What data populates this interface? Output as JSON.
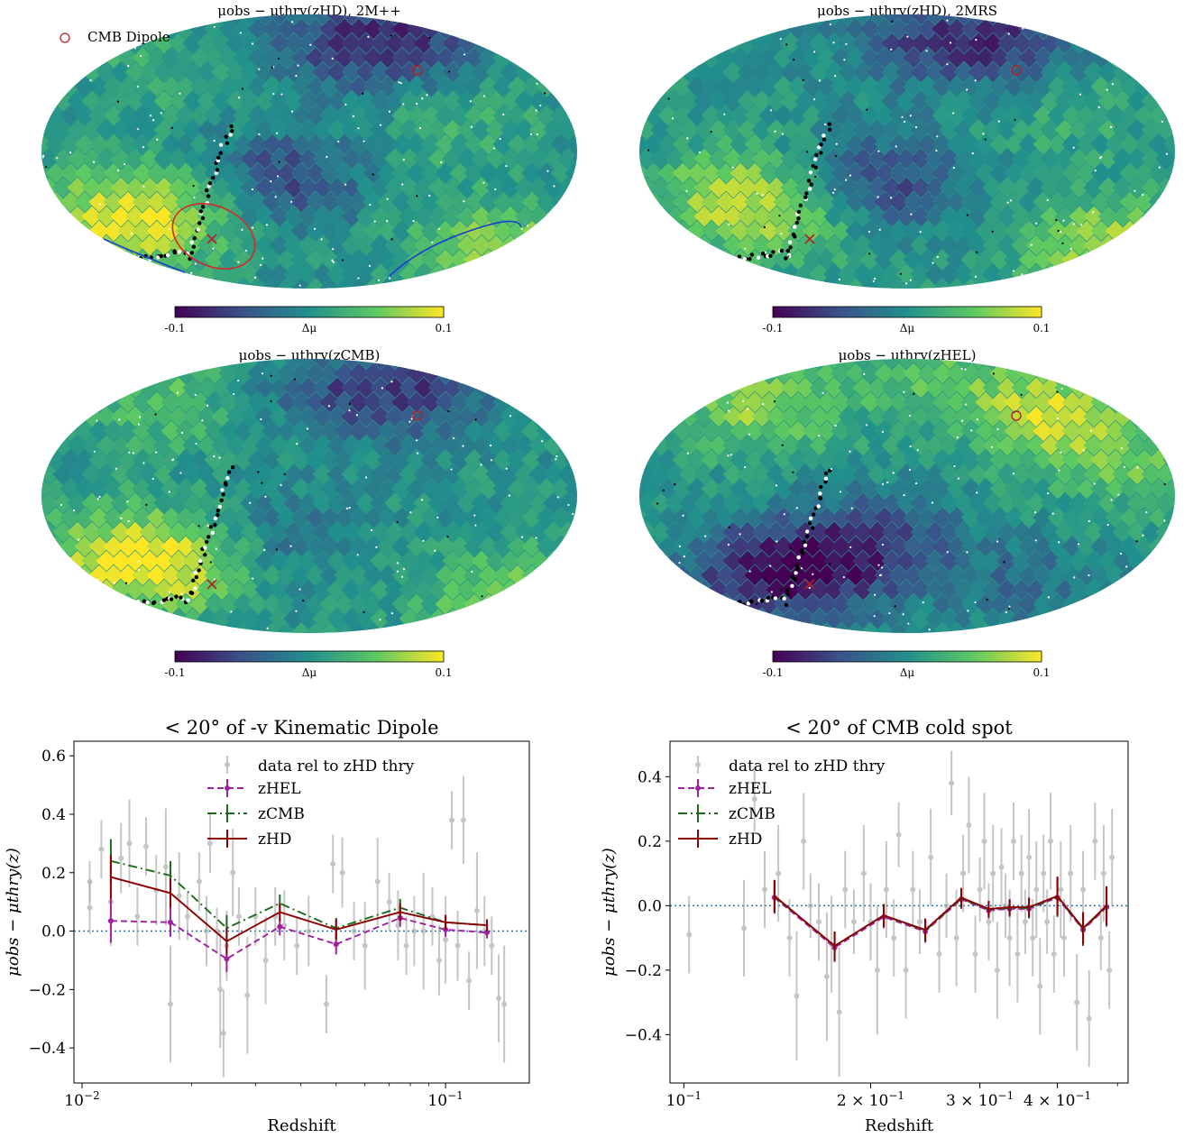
{
  "sky_panels": [
    {
      "title": "μobs − μthry(zHD), 2M++",
      "legend": "CMB Dipole",
      "colorbar_label": "Δμ",
      "colorbar_min": "-0.1",
      "colorbar_max": "0.1"
    },
    {
      "title": "μobs − μthry(zHD), 2MRS",
      "colorbar_label": "Δμ",
      "colorbar_min": "-0.1",
      "colorbar_max": "0.1"
    },
    {
      "title": "μobs − μthry(zCMB)",
      "colorbar_label": "Δμ",
      "colorbar_min": "-0.1",
      "colorbar_max": "0.1"
    },
    {
      "title": "μobs − μthry(zHEL)",
      "colorbar_label": "Δμ",
      "colorbar_min": "-0.1",
      "colorbar_max": "0.1"
    }
  ],
  "colors": {
    "zHEL": "#a020a0",
    "zCMB": "#1a6b1a",
    "zHD": "#8b0000",
    "data": "#a0a0a0",
    "zero_line": "#1f77b4",
    "dipole_marker": "#b22222",
    "highlight_ellipse": "#d62728",
    "blue_contour": "#1a3fd0"
  },
  "chart_data": [
    {
      "type": "line",
      "title": "< 20° of -v Kinematic Dipole",
      "xlabel": "Redshift",
      "ylabel": "μobs − μthry(z)",
      "xscale": "log",
      "xlim": [
        0.0095,
        0.17
      ],
      "ylim": [
        -0.52,
        0.65
      ],
      "xticks": [
        {
          "v": 0.01,
          "base": "10",
          "exp": "−2"
        },
        {
          "v": 0.1,
          "base": "10",
          "exp": "−1"
        }
      ],
      "yticks": [
        {
          "v": 0.6,
          "label": "0.6"
        },
        {
          "v": 0.4,
          "label": "0.4"
        },
        {
          "v": 0.2,
          "label": "0.2"
        },
        {
          "v": 0.0,
          "label": "0.0"
        },
        {
          "v": -0.2,
          "label": "−0.2"
        },
        {
          "v": -0.4,
          "label": "−0.4"
        }
      ],
      "zero_line": 0,
      "legend_loc": "upper center",
      "data_label": "data rel to zHD thry",
      "series": [
        {
          "name": "zHEL",
          "style": "dashed",
          "x": [
            0.012,
            0.0175,
            0.025,
            0.035,
            0.05,
            0.075,
            0.1,
            0.13
          ],
          "y": [
            0.035,
            0.03,
            -0.095,
            0.015,
            -0.045,
            0.045,
            0.005,
            -0.005
          ],
          "err": [
            0.075,
            0.05,
            0.045,
            0.03,
            0.035,
            0.03,
            0.025,
            0.02
          ]
        },
        {
          "name": "zCMB",
          "style": "dashdot",
          "x": [
            0.012,
            0.0175,
            0.025,
            0.035,
            0.05,
            0.075,
            0.1,
            0.13
          ],
          "y": [
            0.24,
            0.19,
            0.01,
            0.095,
            0.01,
            0.08,
            0.03,
            0.02
          ],
          "err": [
            0.075,
            0.05,
            0.045,
            0.03,
            0.035,
            0.03,
            0.025,
            0.02
          ]
        },
        {
          "name": "zHD",
          "style": "solid",
          "x": [
            0.012,
            0.0175,
            0.025,
            0.035,
            0.05,
            0.075,
            0.1,
            0.13
          ],
          "y": [
            0.185,
            0.13,
            -0.035,
            0.065,
            0.005,
            0.065,
            0.03,
            0.02
          ],
          "err": [
            0.075,
            0.05,
            0.045,
            0.03,
            0.035,
            0.03,
            0.025,
            0.02
          ]
        }
      ],
      "data_points": [
        [
          0.0105,
          0.17,
          0.07
        ],
        [
          0.0105,
          0.08,
          0.09
        ],
        [
          0.0113,
          0.28,
          0.1
        ],
        [
          0.012,
          0.1,
          0.15
        ],
        [
          0.0128,
          0.25,
          0.12
        ],
        [
          0.0135,
          0.3,
          0.15
        ],
        [
          0.0142,
          0.05,
          0.1
        ],
        [
          0.015,
          0.29,
          0.1
        ],
        [
          0.016,
          0.14,
          0.12
        ],
        [
          0.017,
          0.22,
          0.2
        ],
        [
          0.0175,
          -0.25,
          0.2
        ],
        [
          0.0185,
          0.12,
          0.15
        ],
        [
          0.0195,
          0.05,
          0.08
        ],
        [
          0.021,
          0.17,
          0.1
        ],
        [
          0.022,
          0.0,
          0.12
        ],
        [
          0.0225,
          0.3,
          0.1
        ],
        [
          0.0235,
          0.0,
          0.08
        ],
        [
          0.024,
          -0.2,
          0.2
        ],
        [
          0.0245,
          -0.35,
          0.15
        ],
        [
          0.025,
          -0.05,
          0.12
        ],
        [
          0.026,
          0.2,
          0.15
        ],
        [
          0.027,
          0.05,
          0.1
        ],
        [
          0.0285,
          -0.22,
          0.2
        ],
        [
          0.03,
          0.05,
          0.1
        ],
        [
          0.032,
          -0.1,
          0.15
        ],
        [
          0.034,
          0.05,
          0.1
        ],
        [
          0.036,
          0.02,
          0.12
        ],
        [
          0.039,
          -0.05,
          0.1
        ],
        [
          0.042,
          0.0,
          0.12
        ],
        [
          0.047,
          -0.25,
          0.1
        ],
        [
          0.049,
          0.23,
          0.1
        ],
        [
          0.052,
          0.2,
          0.12
        ],
        [
          0.056,
          0.0,
          0.1
        ],
        [
          0.06,
          -0.05,
          0.15
        ],
        [
          0.065,
          0.17,
          0.15
        ],
        [
          0.07,
          0.1,
          0.1
        ],
        [
          0.074,
          0.02,
          0.12
        ],
        [
          0.078,
          -0.05,
          0.1
        ],
        [
          0.082,
          0.0,
          0.12
        ],
        [
          0.087,
          0.0,
          0.2
        ],
        [
          0.092,
          0.05,
          0.1
        ],
        [
          0.096,
          -0.1,
          0.12
        ],
        [
          0.1,
          -0.03,
          0.15
        ],
        [
          0.104,
          0.38,
          0.1
        ],
        [
          0.108,
          -0.05,
          0.12
        ],
        [
          0.112,
          0.38,
          0.15
        ],
        [
          0.116,
          -0.17,
          0.1
        ],
        [
          0.122,
          0.07,
          0.2
        ],
        [
          0.128,
          0.0,
          0.12
        ],
        [
          0.134,
          -0.05,
          0.1
        ],
        [
          0.14,
          -0.23,
          0.15
        ],
        [
          0.145,
          -0.25,
          0.2
        ]
      ]
    },
    {
      "type": "line",
      "title": "< 20° of CMB cold spot",
      "xlabel": "Redshift",
      "ylabel": "μobs − μthry(z)",
      "xscale": "log",
      "xlim": [
        0.095,
        0.52
      ],
      "ylim": [
        -0.55,
        0.51
      ],
      "xticks": [
        {
          "v": 0.1,
          "base": "10",
          "exp": "−1",
          "pre": ""
        },
        {
          "v": 0.2,
          "base": "10",
          "exp": "−1",
          "pre": "2 × "
        },
        {
          "v": 0.3,
          "base": "10",
          "exp": "−1",
          "pre": "3 × "
        },
        {
          "v": 0.4,
          "base": "10",
          "exp": "−1",
          "pre": "4 × "
        }
      ],
      "yticks": [
        {
          "v": 0.4,
          "label": "0.4"
        },
        {
          "v": 0.2,
          "label": "0.2"
        },
        {
          "v": 0.0,
          "label": "0.0"
        },
        {
          "v": -0.2,
          "label": "−0.2"
        },
        {
          "v": -0.4,
          "label": "−0.4"
        }
      ],
      "zero_line": 0,
      "legend_loc": "upper left",
      "data_label": "data rel to zHD thry",
      "series": [
        {
          "name": "zHEL",
          "style": "dashed",
          "x": [
            0.14,
            0.175,
            0.21,
            0.245,
            0.28,
            0.31,
            0.335,
            0.36,
            0.4,
            0.44,
            0.48
          ],
          "y": [
            0.025,
            -0.13,
            -0.035,
            -0.08,
            0.02,
            -0.015,
            -0.01,
            -0.01,
            0.025,
            -0.075,
            -0.005
          ],
          "err": [
            0.05,
            0.045,
            0.035,
            0.035,
            0.03,
            0.025,
            0.025,
            0.03,
            0.06,
            0.05,
            0.06
          ]
        },
        {
          "name": "zCMB",
          "style": "dashdot",
          "x": [
            0.14,
            0.175,
            0.21,
            0.245,
            0.28,
            0.31,
            0.335,
            0.36,
            0.4,
            0.44,
            0.48
          ],
          "y": [
            0.028,
            -0.125,
            -0.03,
            -0.077,
            0.022,
            -0.012,
            -0.007,
            -0.008,
            0.027,
            -0.072,
            -0.002
          ],
          "err": [
            0.05,
            0.045,
            0.035,
            0.035,
            0.03,
            0.025,
            0.025,
            0.03,
            0.06,
            0.05,
            0.06
          ]
        },
        {
          "name": "zHD",
          "style": "solid",
          "x": [
            0.14,
            0.175,
            0.21,
            0.245,
            0.28,
            0.31,
            0.335,
            0.36,
            0.4,
            0.44,
            0.48
          ],
          "y": [
            0.03,
            -0.125,
            -0.03,
            -0.075,
            0.025,
            -0.01,
            -0.005,
            -0.005,
            0.03,
            -0.07,
            0.0
          ],
          "err": [
            0.05,
            0.045,
            0.035,
            0.035,
            0.03,
            0.025,
            0.025,
            0.03,
            0.06,
            0.05,
            0.06
          ]
        }
      ],
      "data_points": [
        [
          0.102,
          -0.09,
          0.12
        ],
        [
          0.125,
          -0.07,
          0.15
        ],
        [
          0.13,
          0.33,
          0.1
        ],
        [
          0.135,
          0.05,
          0.12
        ],
        [
          0.142,
          0.1,
          0.15
        ],
        [
          0.148,
          -0.1,
          0.12
        ],
        [
          0.152,
          -0.28,
          0.2
        ],
        [
          0.156,
          0.2,
          0.15
        ],
        [
          0.16,
          0.0,
          0.1
        ],
        [
          0.165,
          -0.05,
          0.12
        ],
        [
          0.17,
          -0.22,
          0.2
        ],
        [
          0.173,
          -0.12,
          0.15
        ],
        [
          0.178,
          -0.33,
          0.2
        ],
        [
          0.182,
          0.05,
          0.12
        ],
        [
          0.188,
          -0.05,
          0.1
        ],
        [
          0.195,
          0.1,
          0.15
        ],
        [
          0.2,
          -0.05,
          0.12
        ],
        [
          0.205,
          -0.2,
          0.2
        ],
        [
          0.212,
          0.05,
          0.15
        ],
        [
          0.218,
          -0.1,
          0.12
        ],
        [
          0.222,
          0.22,
          0.1
        ],
        [
          0.228,
          -0.2,
          0.15
        ],
        [
          0.234,
          0.05,
          0.12
        ],
        [
          0.24,
          -0.05,
          0.1
        ],
        [
          0.25,
          0.15,
          0.15
        ],
        [
          0.258,
          -0.15,
          0.12
        ],
        [
          0.265,
          0.0,
          0.1
        ],
        [
          0.27,
          0.38,
          0.1
        ],
        [
          0.275,
          -0.1,
          0.15
        ],
        [
          0.282,
          0.1,
          0.12
        ],
        [
          0.288,
          0.25,
          0.15
        ],
        [
          0.295,
          -0.15,
          0.12
        ],
        [
          0.3,
          0.05,
          0.1
        ],
        [
          0.305,
          0.2,
          0.15
        ],
        [
          0.31,
          -0.05,
          0.12
        ],
        [
          0.315,
          0.1,
          0.15
        ],
        [
          0.32,
          -0.2,
          0.15
        ],
        [
          0.325,
          0.12,
          0.12
        ],
        [
          0.33,
          0.0,
          0.1
        ],
        [
          0.335,
          -0.1,
          0.15
        ],
        [
          0.34,
          0.2,
          0.12
        ],
        [
          0.345,
          -0.15,
          0.15
        ],
        [
          0.35,
          0.1,
          0.12
        ],
        [
          0.355,
          -0.05,
          0.1
        ],
        [
          0.36,
          0.15,
          0.15
        ],
        [
          0.365,
          -0.1,
          0.12
        ],
        [
          0.37,
          0.05,
          0.15
        ],
        [
          0.375,
          -0.25,
          0.15
        ],
        [
          0.38,
          0.1,
          0.12
        ],
        [
          0.385,
          -0.05,
          0.1
        ],
        [
          0.39,
          0.2,
          0.15
        ],
        [
          0.395,
          -0.15,
          0.12
        ],
        [
          0.405,
          0.05,
          0.15
        ],
        [
          0.41,
          -0.1,
          0.12
        ],
        [
          0.42,
          0.1,
          0.15
        ],
        [
          0.43,
          -0.3,
          0.15
        ],
        [
          0.44,
          0.05,
          0.12
        ],
        [
          0.45,
          -0.35,
          0.15
        ],
        [
          0.46,
          0.2,
          0.12
        ],
        [
          0.47,
          -0.1,
          0.1
        ],
        [
          0.475,
          0.1,
          0.15
        ],
        [
          0.485,
          -0.2,
          0.12
        ],
        [
          0.49,
          0.15,
          0.15
        ]
      ]
    }
  ]
}
